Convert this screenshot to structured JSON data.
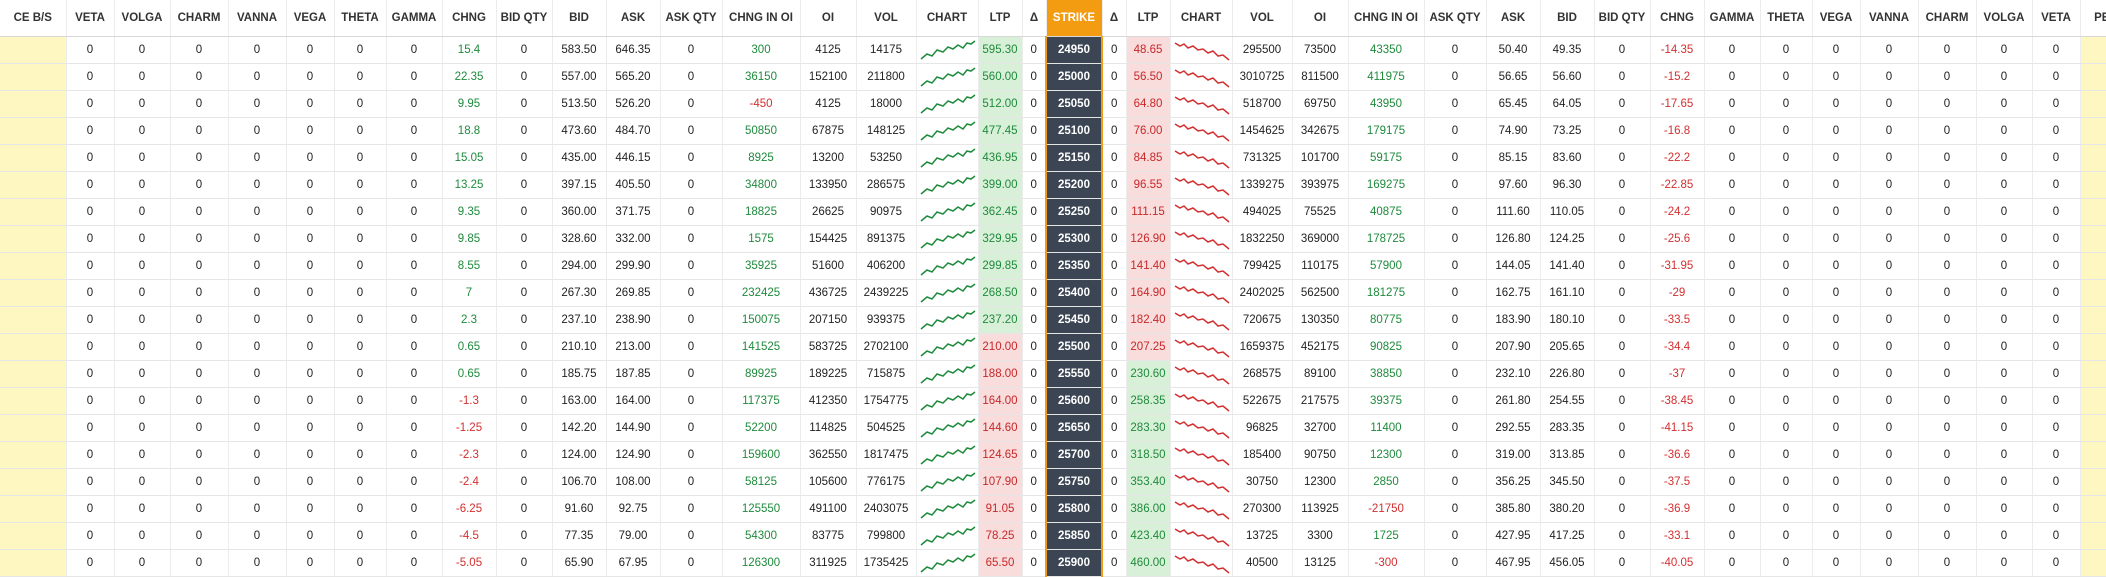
{
  "colors": {
    "strike_header": "#f39c12",
    "strike_cell": "#3c4554",
    "positive": "#1e8a3c",
    "negative": "#d32f2f",
    "buy_sell_cell": "#fff7c2",
    "green_bg": "#d8f0d8",
    "red_bg": "#f9dcdc"
  },
  "headers": [
    "CE B/S",
    "VETA",
    "VOLGA",
    "CHARM",
    "VANNA",
    "VEGA",
    "THETA",
    "GAMMA",
    "CHNG",
    "BID QTY",
    "BID",
    "ASK",
    "ASK QTY",
    "CHNG IN OI",
    "OI",
    "VOL",
    "CHART",
    "LTP",
    "Δ",
    "STRIKE",
    "Δ",
    "LTP",
    "CHART",
    "VOL",
    "OI",
    "CHNG IN OI",
    "ASK QTY",
    "ASK",
    "BID",
    "BID QTY",
    "CHNG",
    "GAMMA",
    "THETA",
    "VEGA",
    "VANNA",
    "CHARM",
    "VOLGA",
    "VETA",
    "PE B/S"
  ],
  "rows": [
    {
      "ce": {
        "veta": "0",
        "volga": "0",
        "charm": "0",
        "vanna": "0",
        "vega": "0",
        "theta": "0",
        "gamma": "0",
        "chng": "15.4",
        "bid_qty": "0",
        "bid": "583.50",
        "ask": "646.35",
        "ask_qty": "0",
        "chng_oi": "300",
        "oi": "4125",
        "vol": "14175",
        "ltp": "595.30",
        "delta": "0"
      },
      "strike": "24950",
      "pe": {
        "delta": "0",
        "ltp": "48.65",
        "vol": "295500",
        "oi": "73500",
        "chng_oi": "43350",
        "ask_qty": "0",
        "ask": "50.40",
        "bid": "49.35",
        "bid_qty": "0",
        "chng": "-14.35",
        "gamma": "0",
        "theta": "0",
        "vega": "0",
        "vanna": "0",
        "charm": "0",
        "volga": "0",
        "veta": "0"
      }
    },
    {
      "ce": {
        "veta": "0",
        "volga": "0",
        "charm": "0",
        "vanna": "0",
        "vega": "0",
        "theta": "0",
        "gamma": "0",
        "chng": "22.35",
        "bid_qty": "0",
        "bid": "557.00",
        "ask": "565.20",
        "ask_qty": "0",
        "chng_oi": "36150",
        "oi": "152100",
        "vol": "211800",
        "ltp": "560.00",
        "delta": "0"
      },
      "strike": "25000",
      "pe": {
        "delta": "0",
        "ltp": "56.50",
        "vol": "3010725",
        "oi": "811500",
        "chng_oi": "411975",
        "ask_qty": "0",
        "ask": "56.65",
        "bid": "56.60",
        "bid_qty": "0",
        "chng": "-15.2",
        "gamma": "0",
        "theta": "0",
        "vega": "0",
        "vanna": "0",
        "charm": "0",
        "volga": "0",
        "veta": "0"
      }
    },
    {
      "ce": {
        "veta": "0",
        "volga": "0",
        "charm": "0",
        "vanna": "0",
        "vega": "0",
        "theta": "0",
        "gamma": "0",
        "chng": "9.95",
        "bid_qty": "0",
        "bid": "513.50",
        "ask": "526.20",
        "ask_qty": "0",
        "chng_oi": "-450",
        "oi": "4125",
        "vol": "18000",
        "ltp": "512.00",
        "delta": "0"
      },
      "strike": "25050",
      "pe": {
        "delta": "0",
        "ltp": "64.80",
        "vol": "518700",
        "oi": "69750",
        "chng_oi": "43950",
        "ask_qty": "0",
        "ask": "65.45",
        "bid": "64.05",
        "bid_qty": "0",
        "chng": "-17.65",
        "gamma": "0",
        "theta": "0",
        "vega": "0",
        "vanna": "0",
        "charm": "0",
        "volga": "0",
        "veta": "0"
      }
    },
    {
      "ce": {
        "veta": "0",
        "volga": "0",
        "charm": "0",
        "vanna": "0",
        "vega": "0",
        "theta": "0",
        "gamma": "0",
        "chng": "18.8",
        "bid_qty": "0",
        "bid": "473.60",
        "ask": "484.70",
        "ask_qty": "0",
        "chng_oi": "50850",
        "oi": "67875",
        "vol": "148125",
        "ltp": "477.45",
        "delta": "0"
      },
      "strike": "25100",
      "pe": {
        "delta": "0",
        "ltp": "76.00",
        "vol": "1454625",
        "oi": "342675",
        "chng_oi": "179175",
        "ask_qty": "0",
        "ask": "74.90",
        "bid": "73.25",
        "bid_qty": "0",
        "chng": "-16.8",
        "gamma": "0",
        "theta": "0",
        "vega": "0",
        "vanna": "0",
        "charm": "0",
        "volga": "0",
        "veta": "0"
      }
    },
    {
      "ce": {
        "veta": "0",
        "volga": "0",
        "charm": "0",
        "vanna": "0",
        "vega": "0",
        "theta": "0",
        "gamma": "0",
        "chng": "15.05",
        "bid_qty": "0",
        "bid": "435.00",
        "ask": "446.15",
        "ask_qty": "0",
        "chng_oi": "8925",
        "oi": "13200",
        "vol": "53250",
        "ltp": "436.95",
        "delta": "0"
      },
      "strike": "25150",
      "pe": {
        "delta": "0",
        "ltp": "84.85",
        "vol": "731325",
        "oi": "101700",
        "chng_oi": "59175",
        "ask_qty": "0",
        "ask": "85.15",
        "bid": "83.60",
        "bid_qty": "0",
        "chng": "-22.2",
        "gamma": "0",
        "theta": "0",
        "vega": "0",
        "vanna": "0",
        "charm": "0",
        "volga": "0",
        "veta": "0"
      }
    },
    {
      "ce": {
        "veta": "0",
        "volga": "0",
        "charm": "0",
        "vanna": "0",
        "vega": "0",
        "theta": "0",
        "gamma": "0",
        "chng": "13.25",
        "bid_qty": "0",
        "bid": "397.15",
        "ask": "405.50",
        "ask_qty": "0",
        "chng_oi": "34800",
        "oi": "133950",
        "vol": "286575",
        "ltp": "399.00",
        "delta": "0"
      },
      "strike": "25200",
      "pe": {
        "delta": "0",
        "ltp": "96.55",
        "vol": "1339275",
        "oi": "393975",
        "chng_oi": "169275",
        "ask_qty": "0",
        "ask": "97.60",
        "bid": "96.30",
        "bid_qty": "0",
        "chng": "-22.85",
        "gamma": "0",
        "theta": "0",
        "vega": "0",
        "vanna": "0",
        "charm": "0",
        "volga": "0",
        "veta": "0"
      }
    },
    {
      "ce": {
        "veta": "0",
        "volga": "0",
        "charm": "0",
        "vanna": "0",
        "vega": "0",
        "theta": "0",
        "gamma": "0",
        "chng": "9.35",
        "bid_qty": "0",
        "bid": "360.00",
        "ask": "371.75",
        "ask_qty": "0",
        "chng_oi": "18825",
        "oi": "26625",
        "vol": "90975",
        "ltp": "362.45",
        "delta": "0"
      },
      "strike": "25250",
      "pe": {
        "delta": "0",
        "ltp": "111.15",
        "vol": "494025",
        "oi": "75525",
        "chng_oi": "40875",
        "ask_qty": "0",
        "ask": "111.60",
        "bid": "110.05",
        "bid_qty": "0",
        "chng": "-24.2",
        "gamma": "0",
        "theta": "0",
        "vega": "0",
        "vanna": "0",
        "charm": "0",
        "volga": "0",
        "veta": "0"
      }
    },
    {
      "ce": {
        "veta": "0",
        "volga": "0",
        "charm": "0",
        "vanna": "0",
        "vega": "0",
        "theta": "0",
        "gamma": "0",
        "chng": "9.85",
        "bid_qty": "0",
        "bid": "328.60",
        "ask": "332.00",
        "ask_qty": "0",
        "chng_oi": "1575",
        "oi": "154425",
        "vol": "891375",
        "ltp": "329.95",
        "delta": "0"
      },
      "strike": "25300",
      "pe": {
        "delta": "0",
        "ltp": "126.90",
        "vol": "1832250",
        "oi": "369000",
        "chng_oi": "178725",
        "ask_qty": "0",
        "ask": "126.80",
        "bid": "124.25",
        "bid_qty": "0",
        "chng": "-25.6",
        "gamma": "0",
        "theta": "0",
        "vega": "0",
        "vanna": "0",
        "charm": "0",
        "volga": "0",
        "veta": "0"
      }
    },
    {
      "ce": {
        "veta": "0",
        "volga": "0",
        "charm": "0",
        "vanna": "0",
        "vega": "0",
        "theta": "0",
        "gamma": "0",
        "chng": "8.55",
        "bid_qty": "0",
        "bid": "294.00",
        "ask": "299.90",
        "ask_qty": "0",
        "chng_oi": "35925",
        "oi": "51600",
        "vol": "406200",
        "ltp": "299.85",
        "delta": "0"
      },
      "strike": "25350",
      "pe": {
        "delta": "0",
        "ltp": "141.40",
        "vol": "799425",
        "oi": "110175",
        "chng_oi": "57900",
        "ask_qty": "0",
        "ask": "144.05",
        "bid": "141.40",
        "bid_qty": "0",
        "chng": "-31.95",
        "gamma": "0",
        "theta": "0",
        "vega": "0",
        "vanna": "0",
        "charm": "0",
        "volga": "0",
        "veta": "0"
      }
    },
    {
      "ce": {
        "veta": "0",
        "volga": "0",
        "charm": "0",
        "vanna": "0",
        "vega": "0",
        "theta": "0",
        "gamma": "0",
        "chng": "7",
        "bid_qty": "0",
        "bid": "267.30",
        "ask": "269.85",
        "ask_qty": "0",
        "chng_oi": "232425",
        "oi": "436725",
        "vol": "2439225",
        "ltp": "268.50",
        "delta": "0"
      },
      "strike": "25400",
      "pe": {
        "delta": "0",
        "ltp": "164.90",
        "vol": "2402025",
        "oi": "562500",
        "chng_oi": "181275",
        "ask_qty": "0",
        "ask": "162.75",
        "bid": "161.10",
        "bid_qty": "0",
        "chng": "-29",
        "gamma": "0",
        "theta": "0",
        "vega": "0",
        "vanna": "0",
        "charm": "0",
        "volga": "0",
        "veta": "0"
      }
    },
    {
      "ce": {
        "veta": "0",
        "volga": "0",
        "charm": "0",
        "vanna": "0",
        "vega": "0",
        "theta": "0",
        "gamma": "0",
        "chng": "2.3",
        "bid_qty": "0",
        "bid": "237.10",
        "ask": "238.90",
        "ask_qty": "0",
        "chng_oi": "150075",
        "oi": "207150",
        "vol": "939375",
        "ltp": "237.20",
        "delta": "0"
      },
      "strike": "25450",
      "pe": {
        "delta": "0",
        "ltp": "182.40",
        "vol": "720675",
        "oi": "130350",
        "chng_oi": "80775",
        "ask_qty": "0",
        "ask": "183.90",
        "bid": "180.10",
        "bid_qty": "0",
        "chng": "-33.5",
        "gamma": "0",
        "theta": "0",
        "vega": "0",
        "vanna": "0",
        "charm": "0",
        "volga": "0",
        "veta": "0"
      }
    },
    {
      "ce": {
        "veta": "0",
        "volga": "0",
        "charm": "0",
        "vanna": "0",
        "vega": "0",
        "theta": "0",
        "gamma": "0",
        "chng": "0.65",
        "bid_qty": "0",
        "bid": "210.10",
        "ask": "213.00",
        "ask_qty": "0",
        "chng_oi": "141525",
        "oi": "583725",
        "vol": "2702100",
        "ltp": "210.00",
        "delta": "0"
      },
      "strike": "25500",
      "pe": {
        "delta": "0",
        "ltp": "207.25",
        "vol": "1659375",
        "oi": "452175",
        "chng_oi": "90825",
        "ask_qty": "0",
        "ask": "207.90",
        "bid": "205.65",
        "bid_qty": "0",
        "chng": "-34.4",
        "gamma": "0",
        "theta": "0",
        "vega": "0",
        "vanna": "0",
        "charm": "0",
        "volga": "0",
        "veta": "0"
      }
    },
    {
      "ce": {
        "veta": "0",
        "volga": "0",
        "charm": "0",
        "vanna": "0",
        "vega": "0",
        "theta": "0",
        "gamma": "0",
        "chng": "0.65",
        "bid_qty": "0",
        "bid": "185.75",
        "ask": "187.85",
        "ask_qty": "0",
        "chng_oi": "89925",
        "oi": "189225",
        "vol": "715875",
        "ltp": "188.00",
        "delta": "0"
      },
      "strike": "25550",
      "pe": {
        "delta": "0",
        "ltp": "230.60",
        "vol": "268575",
        "oi": "89100",
        "chng_oi": "38850",
        "ask_qty": "0",
        "ask": "232.10",
        "bid": "226.80",
        "bid_qty": "0",
        "chng": "-37",
        "gamma": "0",
        "theta": "0",
        "vega": "0",
        "vanna": "0",
        "charm": "0",
        "volga": "0",
        "veta": "0"
      }
    },
    {
      "ce": {
        "veta": "0",
        "volga": "0",
        "charm": "0",
        "vanna": "0",
        "vega": "0",
        "theta": "0",
        "gamma": "0",
        "chng": "-1.3",
        "bid_qty": "0",
        "bid": "163.00",
        "ask": "164.00",
        "ask_qty": "0",
        "chng_oi": "117375",
        "oi": "412350",
        "vol": "1754775",
        "ltp": "164.00",
        "delta": "0"
      },
      "strike": "25600",
      "pe": {
        "delta": "0",
        "ltp": "258.35",
        "vol": "522675",
        "oi": "217575",
        "chng_oi": "39375",
        "ask_qty": "0",
        "ask": "261.80",
        "bid": "254.55",
        "bid_qty": "0",
        "chng": "-38.45",
        "gamma": "0",
        "theta": "0",
        "vega": "0",
        "vanna": "0",
        "charm": "0",
        "volga": "0",
        "veta": "0"
      }
    },
    {
      "ce": {
        "veta": "0",
        "volga": "0",
        "charm": "0",
        "vanna": "0",
        "vega": "0",
        "theta": "0",
        "gamma": "0",
        "chng": "-1.25",
        "bid_qty": "0",
        "bid": "142.20",
        "ask": "144.90",
        "ask_qty": "0",
        "chng_oi": "52200",
        "oi": "114825",
        "vol": "504525",
        "ltp": "144.60",
        "delta": "0"
      },
      "strike": "25650",
      "pe": {
        "delta": "0",
        "ltp": "283.30",
        "vol": "96825",
        "oi": "32700",
        "chng_oi": "11400",
        "ask_qty": "0",
        "ask": "292.55",
        "bid": "283.35",
        "bid_qty": "0",
        "chng": "-41.15",
        "gamma": "0",
        "theta": "0",
        "vega": "0",
        "vanna": "0",
        "charm": "0",
        "volga": "0",
        "veta": "0"
      }
    },
    {
      "ce": {
        "veta": "0",
        "volga": "0",
        "charm": "0",
        "vanna": "0",
        "vega": "0",
        "theta": "0",
        "gamma": "0",
        "chng": "-2.3",
        "bid_qty": "0",
        "bid": "124.00",
        "ask": "124.90",
        "ask_qty": "0",
        "chng_oi": "159600",
        "oi": "362550",
        "vol": "1817475",
        "ltp": "124.65",
        "delta": "0"
      },
      "strike": "25700",
      "pe": {
        "delta": "0",
        "ltp": "318.50",
        "vol": "185400",
        "oi": "90750",
        "chng_oi": "12300",
        "ask_qty": "0",
        "ask": "319.00",
        "bid": "313.85",
        "bid_qty": "0",
        "chng": "-36.6",
        "gamma": "0",
        "theta": "0",
        "vega": "0",
        "vanna": "0",
        "charm": "0",
        "volga": "0",
        "veta": "0"
      }
    },
    {
      "ce": {
        "veta": "0",
        "volga": "0",
        "charm": "0",
        "vanna": "0",
        "vega": "0",
        "theta": "0",
        "gamma": "0",
        "chng": "-2.4",
        "bid_qty": "0",
        "bid": "106.70",
        "ask": "108.00",
        "ask_qty": "0",
        "chng_oi": "58125",
        "oi": "105600",
        "vol": "776175",
        "ltp": "107.90",
        "delta": "0"
      },
      "strike": "25750",
      "pe": {
        "delta": "0",
        "ltp": "353.40",
        "vol": "30750",
        "oi": "12300",
        "chng_oi": "2850",
        "ask_qty": "0",
        "ask": "356.25",
        "bid": "345.50",
        "bid_qty": "0",
        "chng": "-37.5",
        "gamma": "0",
        "theta": "0",
        "vega": "0",
        "vanna": "0",
        "charm": "0",
        "volga": "0",
        "veta": "0"
      }
    },
    {
      "ce": {
        "veta": "0",
        "volga": "0",
        "charm": "0",
        "vanna": "0",
        "vega": "0",
        "theta": "0",
        "gamma": "0",
        "chng": "-6.25",
        "bid_qty": "0",
        "bid": "91.60",
        "ask": "92.75",
        "ask_qty": "0",
        "chng_oi": "125550",
        "oi": "491100",
        "vol": "2403075",
        "ltp": "91.05",
        "delta": "0"
      },
      "strike": "25800",
      "pe": {
        "delta": "0",
        "ltp": "386.00",
        "vol": "270300",
        "oi": "113925",
        "chng_oi": "-21750",
        "ask_qty": "0",
        "ask": "385.80",
        "bid": "380.20",
        "bid_qty": "0",
        "chng": "-36.9",
        "gamma": "0",
        "theta": "0",
        "vega": "0",
        "vanna": "0",
        "charm": "0",
        "volga": "0",
        "veta": "0"
      }
    },
    {
      "ce": {
        "veta": "0",
        "volga": "0",
        "charm": "0",
        "vanna": "0",
        "vega": "0",
        "theta": "0",
        "gamma": "0",
        "chng": "-4.5",
        "bid_qty": "0",
        "bid": "77.35",
        "ask": "79.00",
        "ask_qty": "0",
        "chng_oi": "54300",
        "oi": "83775",
        "vol": "799800",
        "ltp": "78.25",
        "delta": "0"
      },
      "strike": "25850",
      "pe": {
        "delta": "0",
        "ltp": "423.40",
        "vol": "13725",
        "oi": "3300",
        "chng_oi": "1725",
        "ask_qty": "0",
        "ask": "427.95",
        "bid": "417.25",
        "bid_qty": "0",
        "chng": "-33.1",
        "gamma": "0",
        "theta": "0",
        "vega": "0",
        "vanna": "0",
        "charm": "0",
        "volga": "0",
        "veta": "0"
      }
    },
    {
      "ce": {
        "veta": "0",
        "volga": "0",
        "charm": "0",
        "vanna": "0",
        "vega": "0",
        "theta": "0",
        "gamma": "0",
        "chng": "-5.05",
        "bid_qty": "0",
        "bid": "65.90",
        "ask": "67.95",
        "ask_qty": "0",
        "chng_oi": "126300",
        "oi": "311925",
        "vol": "1735425",
        "ltp": "65.50",
        "delta": "0"
      },
      "strike": "25900",
      "pe": {
        "delta": "0",
        "ltp": "460.00",
        "vol": "40500",
        "oi": "13125",
        "chng_oi": "-300",
        "ask_qty": "0",
        "ask": "467.95",
        "bid": "456.05",
        "bid_qty": "0",
        "chng": "-40.05",
        "gamma": "0",
        "theta": "0",
        "vega": "0",
        "vanna": "0",
        "charm": "0",
        "volga": "0",
        "veta": "0"
      }
    }
  ]
}
